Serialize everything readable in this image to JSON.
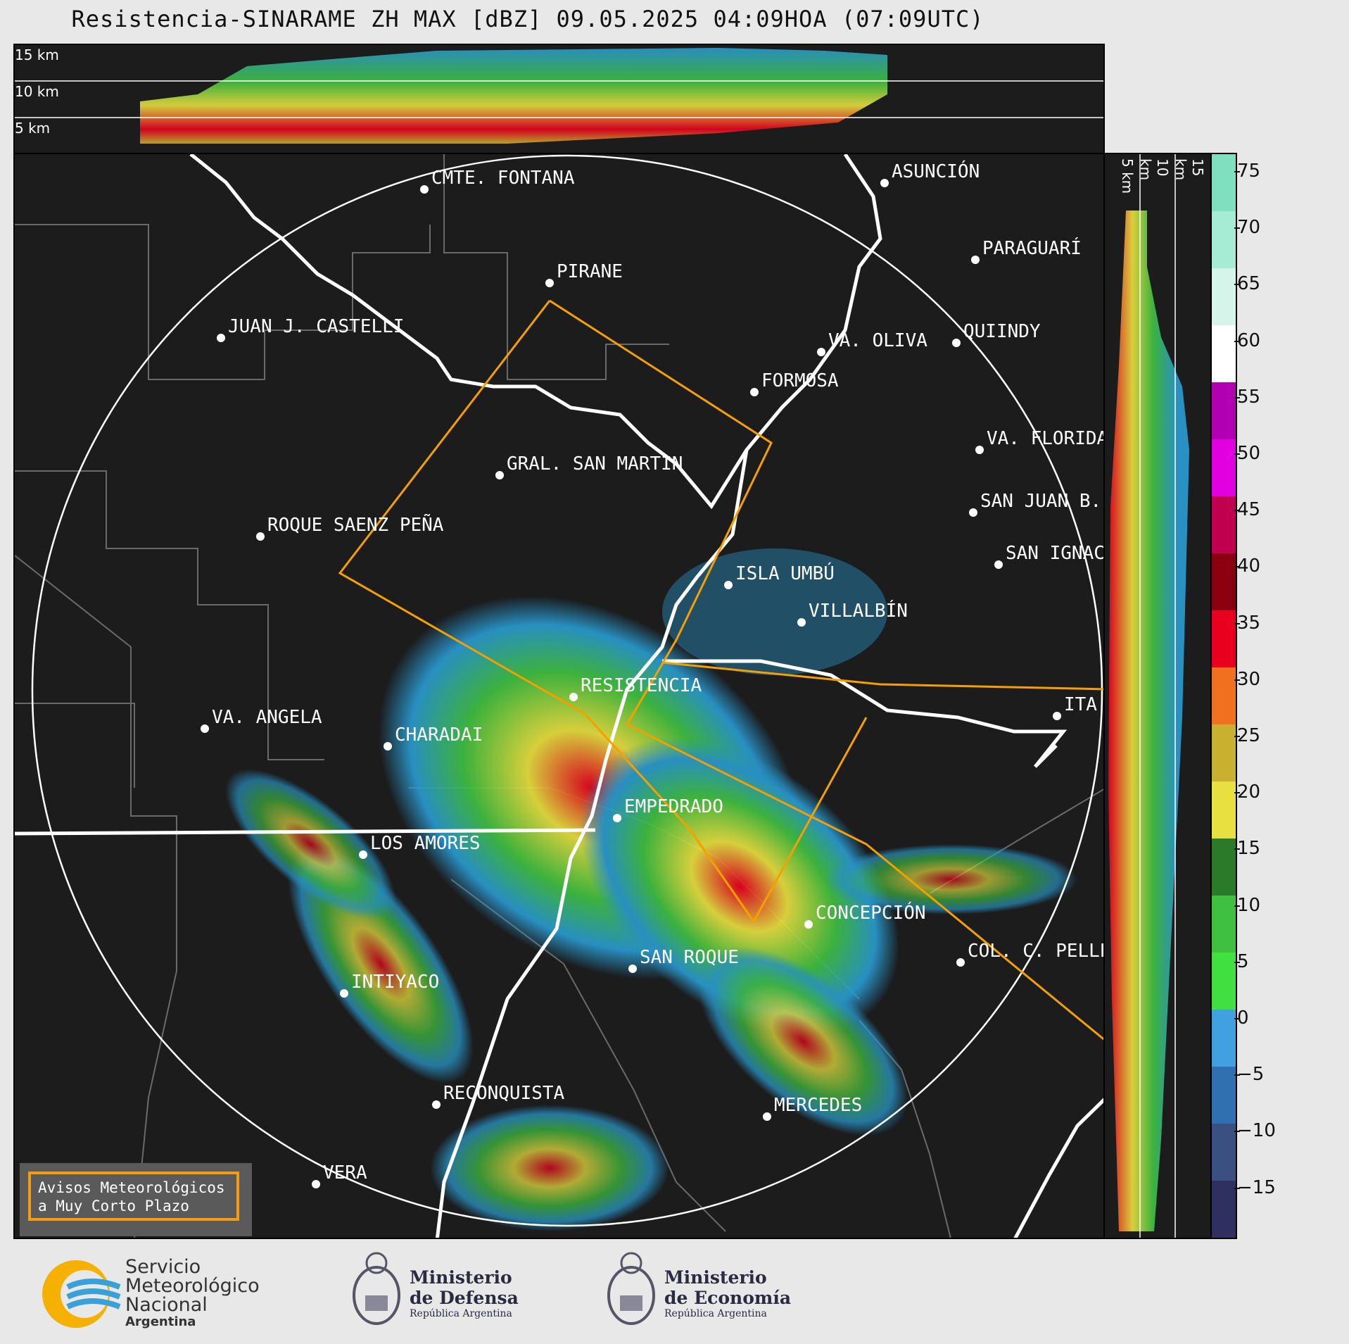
{
  "title": "Resistencia-SINARAME ZH MAX [dBZ] 09.05.2025 04:09HOA (07:09UTC)",
  "height_labels": [
    "15 km",
    "10 km",
    "5 km"
  ],
  "side_height_labels": [
    "5 km",
    "10 km",
    "15 km"
  ],
  "cities": [
    {
      "name": "CMTE. FONTANA",
      "lon": 601,
      "lat": 267
    },
    {
      "name": "ASUNCIÓN",
      "lon": 1255,
      "lat": 258
    },
    {
      "name": "PARAGUARÍ",
      "lon": 1384,
      "lat": 367
    },
    {
      "name": "PIRANE",
      "lon": 779,
      "lat": 400
    },
    {
      "name": "JUAN J. CASTELLI",
      "lon": 312,
      "lat": 478
    },
    {
      "name": "VA. OLIVA",
      "lon": 1165,
      "lat": 498
    },
    {
      "name": "QUIINDY",
      "lon": 1357,
      "lat": 485
    },
    {
      "name": "FORMOSA",
      "lon": 1070,
      "lat": 555
    },
    {
      "name": "VA. FLORIDA",
      "lon": 1390,
      "lat": 637
    },
    {
      "name": "GRAL. SAN MARTIN",
      "lon": 708,
      "lat": 673
    },
    {
      "name": "SAN JUAN B.",
      "lon": 1381,
      "lat": 726
    },
    {
      "name": "ROQUE SAENZ PEÑA",
      "lon": 368,
      "lat": 760
    },
    {
      "name": "SAN IGNACIO",
      "lon": 1417,
      "lat": 800
    },
    {
      "name": "ISLA UMBÚ",
      "lon": 1033,
      "lat": 829
    },
    {
      "name": "VILLALBÍN",
      "lon": 1137,
      "lat": 882
    },
    {
      "name": "RESISTENCIA",
      "lon": 813,
      "lat": 988
    },
    {
      "name": "VA. ANGELA",
      "lon": 289,
      "lat": 1033
    },
    {
      "name": "CHARADAI",
      "lon": 549,
      "lat": 1058
    },
    {
      "name": "ITA",
      "lon": 1500,
      "lat": 1015
    },
    {
      "name": "EMPEDRADO",
      "lon": 875,
      "lat": 1160
    },
    {
      "name": "LOS AMORES",
      "lon": 514,
      "lat": 1212
    },
    {
      "name": "CONCEPCIÓN",
      "lon": 1147,
      "lat": 1311
    },
    {
      "name": "COL. C. PELLEGRINI",
      "lon": 1363,
      "lat": 1365
    },
    {
      "name": "SAN ROQUE",
      "lon": 897,
      "lat": 1374
    },
    {
      "name": "INTIYACO",
      "lon": 487,
      "lat": 1409
    },
    {
      "name": "RECONQUISTA",
      "lon": 618,
      "lat": 1567
    },
    {
      "name": "MERCEDES",
      "lon": 1088,
      "lat": 1584
    },
    {
      "name": "VERA",
      "lon": 447,
      "lat": 1680
    }
  ],
  "colorbar": {
    "ticks": [
      "75",
      "70",
      "65",
      "60",
      "55",
      "50",
      "45",
      "40",
      "35",
      "30",
      "25",
      "20",
      "15",
      "10",
      "5",
      "0",
      "−5",
      "−10",
      "−15"
    ],
    "colors": [
      "#7fe0c0",
      "#a6ebd3",
      "#d6f5ea",
      "#ffffff",
      "#b000b0",
      "#e000e0",
      "#c0004e",
      "#8a0010",
      "#e8001e",
      "#f07020",
      "#c8b030",
      "#e8e040",
      "#2a7a2a",
      "#40c040",
      "#40e040",
      "#40a0e0",
      "#3070b0",
      "#3a5080",
      "#303060"
    ]
  },
  "notice": [
    "Avisos Meteorológicos",
    "a Muy Corto Plazo"
  ],
  "logos": {
    "smn": [
      "Servicio",
      "Meteorológico",
      "Nacional",
      "Argentina"
    ],
    "defensa": [
      "Ministerio",
      "de Defensa",
      "República Argentina"
    ],
    "economia": [
      "Ministerio",
      "de Economía",
      "República Argentina"
    ]
  }
}
